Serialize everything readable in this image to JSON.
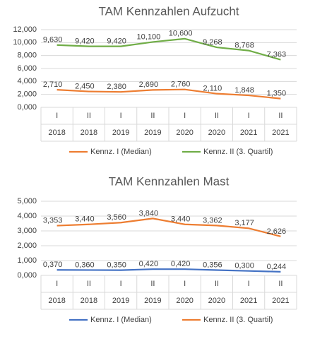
{
  "chart_data": [
    {
      "type": "line",
      "title": "TAM Kennzahlen Aufzucht",
      "categories": [
        [
          "I",
          "2018"
        ],
        [
          "II",
          "2018"
        ],
        [
          "I",
          "2019"
        ],
        [
          "II",
          "2019"
        ],
        [
          "I",
          "2020"
        ],
        [
          "II",
          "2020"
        ],
        [
          "I",
          "2021"
        ],
        [
          "II",
          "2021"
        ]
      ],
      "ylim": [
        0,
        12
      ],
      "grid": true,
      "yticks": [
        {
          "value": 0,
          "label": "0,000"
        },
        {
          "value": 2,
          "label": "2,000"
        },
        {
          "value": 4,
          "label": "4,000"
        },
        {
          "value": 6,
          "label": "6,000"
        },
        {
          "value": 8,
          "label": "8,000"
        },
        {
          "value": 10,
          "label": "10,000"
        },
        {
          "value": 12,
          "label": "12,000"
        }
      ],
      "series": [
        {
          "name": "Kennz. I (Median)",
          "color": "#ed7d31",
          "values": [
            2.71,
            2.45,
            2.38,
            2.69,
            2.76,
            2.11,
            1.848,
            1.35
          ],
          "value_labels": [
            "2,710",
            "2,450",
            "2,380",
            "2,690",
            "2,760",
            "2,110",
            "1,848",
            "1,350"
          ]
        },
        {
          "name": "Kennz. II (3. Quartil)",
          "color": "#70ad47",
          "values": [
            9.63,
            9.42,
            9.42,
            10.1,
            10.6,
            9.268,
            8.768,
            7.363
          ],
          "value_labels": [
            "9,630",
            "9,420",
            "9,420",
            "10,100",
            "10,600",
            "9,268",
            "8,768",
            "7,363"
          ]
        }
      ]
    },
    {
      "type": "line",
      "title": "TAM Kennzahlen Mast",
      "categories": [
        [
          "I",
          "2018"
        ],
        [
          "II",
          "2018"
        ],
        [
          "I",
          "2019"
        ],
        [
          "II",
          "2019"
        ],
        [
          "I",
          "2020"
        ],
        [
          "II",
          "2020"
        ],
        [
          "I",
          "2021"
        ],
        [
          "II",
          "2021"
        ]
      ],
      "ylim": [
        0,
        5
      ],
      "grid": true,
      "yticks": [
        {
          "value": 0,
          "label": "0,000"
        },
        {
          "value": 1,
          "label": "1,000"
        },
        {
          "value": 2,
          "label": "2,000"
        },
        {
          "value": 3,
          "label": "3,000"
        },
        {
          "value": 4,
          "label": "4,000"
        },
        {
          "value": 5,
          "label": "5,000"
        }
      ],
      "series": [
        {
          "name": "Kennz. I (Median)",
          "color": "#4472c4",
          "values": [
            0.37,
            0.36,
            0.35,
            0.42,
            0.42,
            0.356,
            0.3,
            0.244
          ],
          "value_labels": [
            "0,370",
            "0,360",
            "0,350",
            "0,420",
            "0,420",
            "0,356",
            "0,300",
            "0,244"
          ]
        },
        {
          "name": "Kennz. II (3. Quartil)",
          "color": "#ed7d31",
          "values": [
            3.353,
            3.44,
            3.56,
            3.84,
            3.44,
            3.362,
            3.177,
            2.626
          ],
          "value_labels": [
            "3,353",
            "3,440",
            "3,560",
            "3,840",
            "3,440",
            "3,362",
            "3,177",
            "2,626"
          ]
        }
      ]
    }
  ]
}
